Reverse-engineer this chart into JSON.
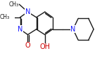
{
  "bg_color": "#ffffff",
  "bond_color": "#1a1a1a",
  "bond_width": 1.0,
  "figsize": [
    1.55,
    0.93
  ],
  "dpi": 100,
  "xlim": [
    -2.5,
    8.5
  ],
  "ylim": [
    -1.8,
    4.2
  ]
}
